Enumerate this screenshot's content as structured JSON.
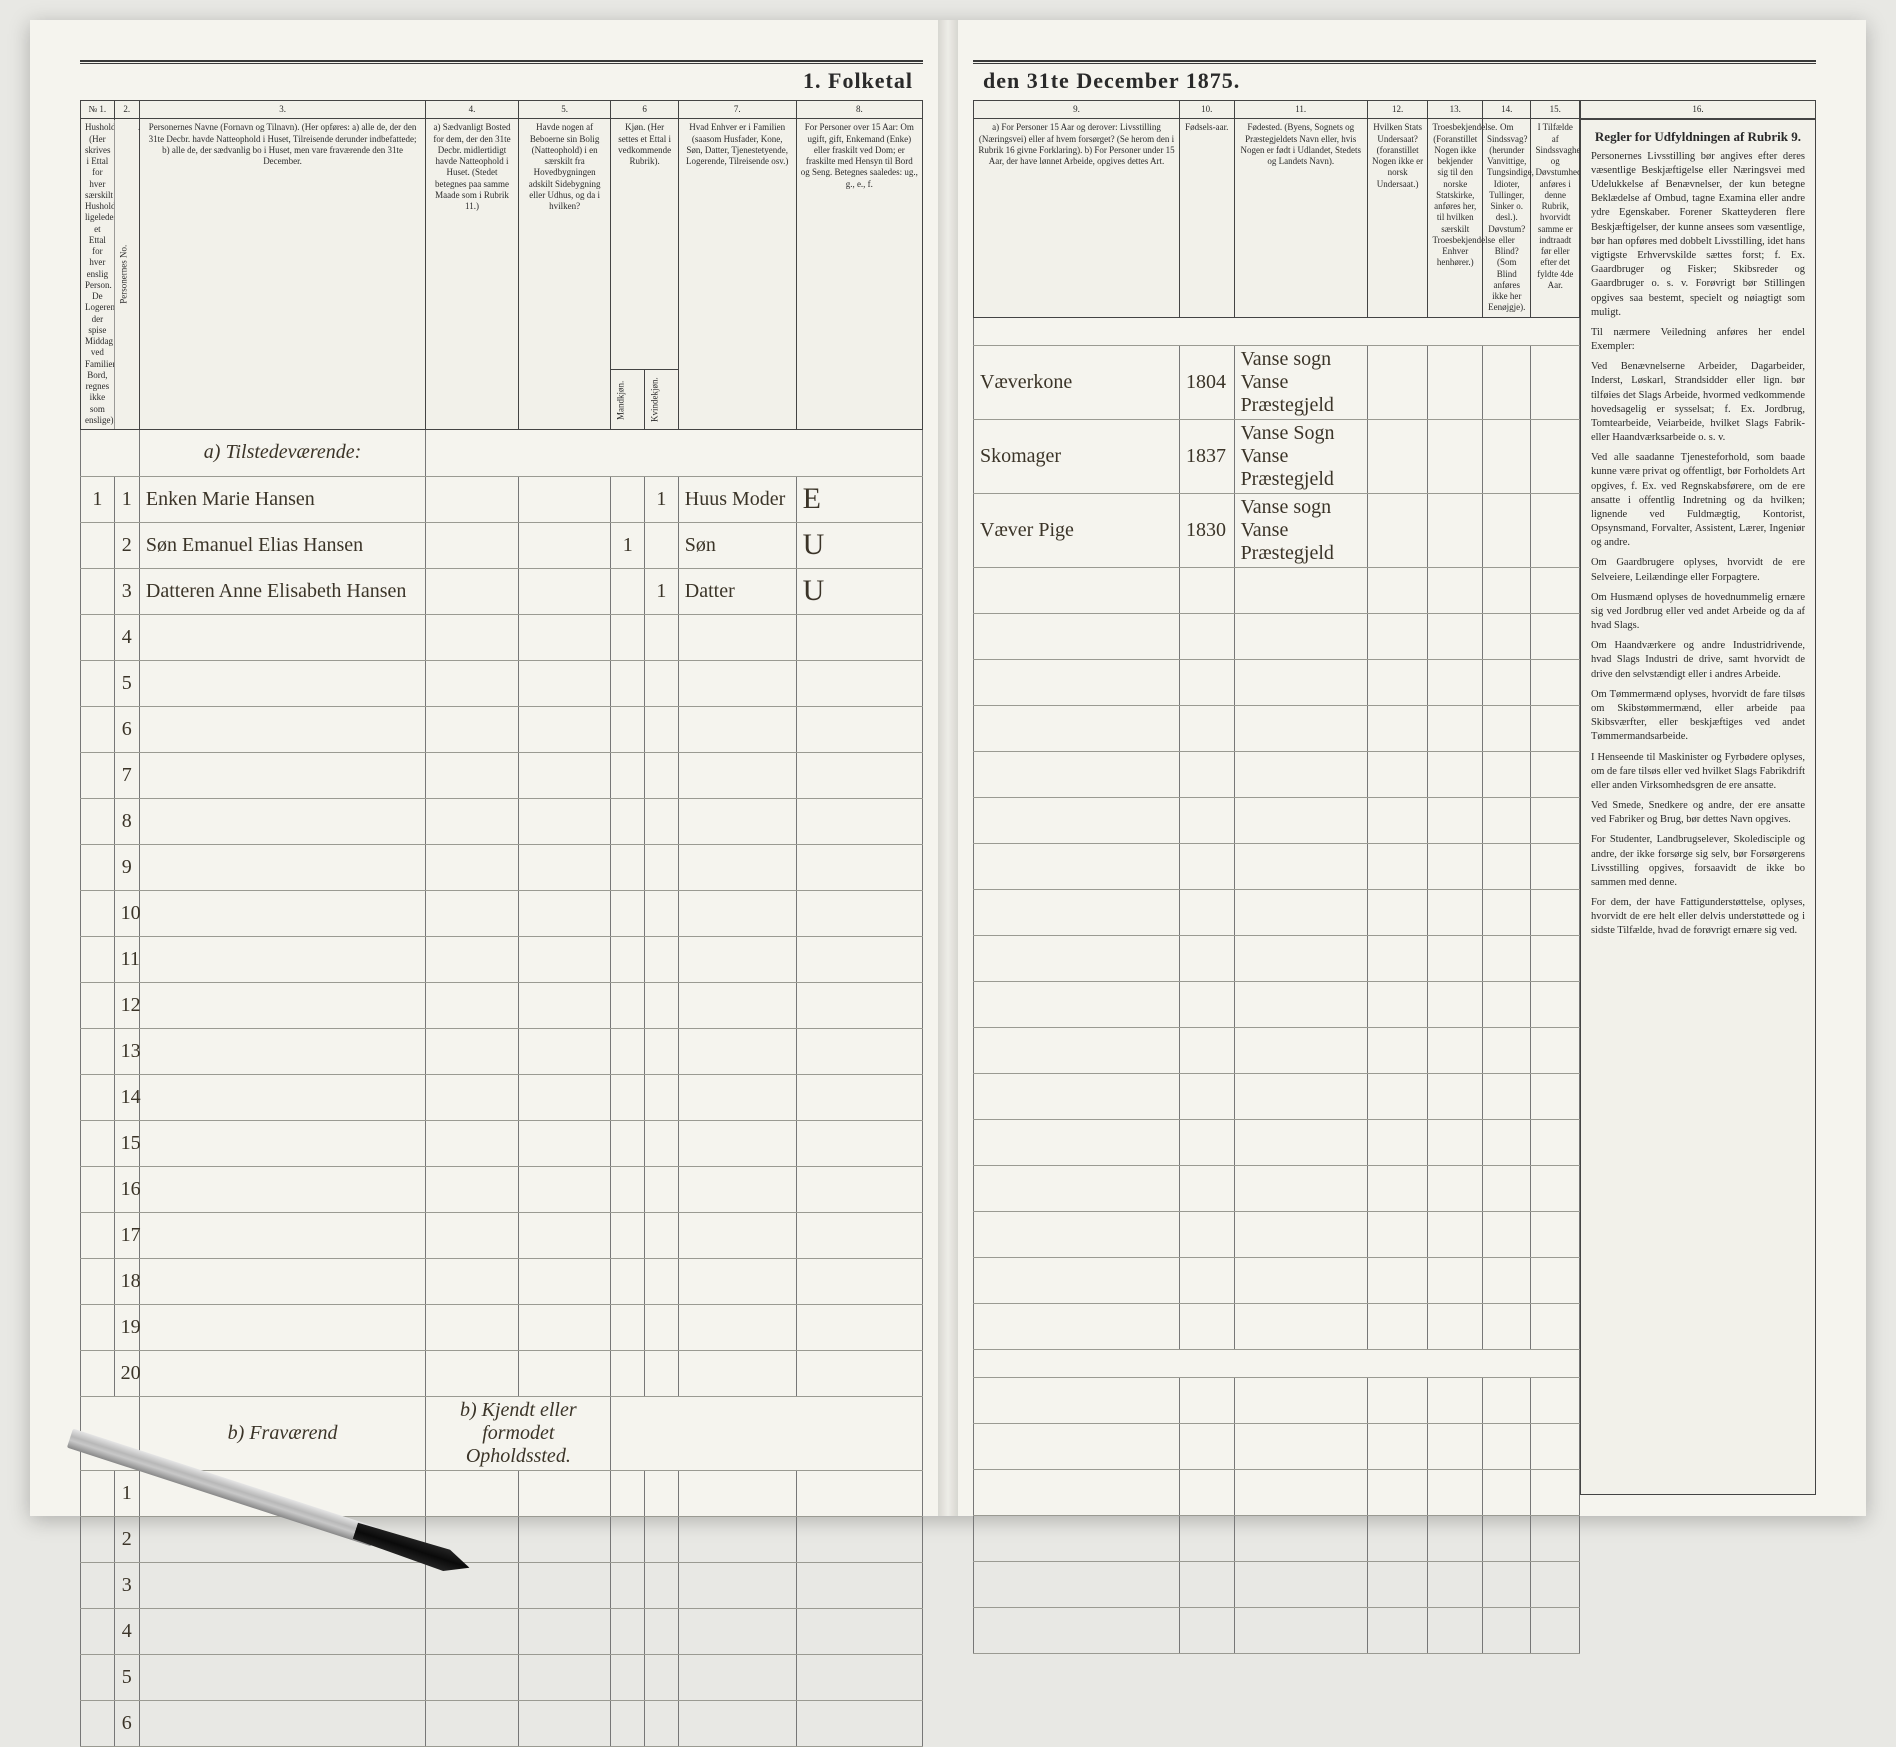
{
  "title_left": "1.  Folketal",
  "title_right": "den 31te December 1875.",
  "left_columns": {
    "c1": {
      "num": "№ 1.",
      "head": "Husholdninger. (Her skrives i Ettal for hver særskilt Husholdning; ligeledes et Ettal for hver enslig Person. De Logerende, der spise Middag ved Familiens Bord, regnes ikke som enslige)."
    },
    "c2": {
      "num": "2.",
      "head": "Personernes No."
    },
    "c3": {
      "num": "3.",
      "head": "Personernes Navne (Fornavn og Tilnavn). (Her opføres: a) alle de, der den 31te Decbr. havde Natteophold i Huset, Tilreisende derunder indbefattede; b) alle de, der sædvanlig bo i Huset, men vare fraværende den 31te December."
    },
    "c4": {
      "num": "4.",
      "head": "a) Sædvanligt Bosted for dem, der den 31te Decbr. midlertidigt havde Natteophold i Huset. (Stedet betegnes paa samme Maade som i Rubrik 11.)"
    },
    "c5": {
      "num": "5.",
      "head": "Havde nogen af Beboerne sin Bolig (Natteophold) i en særskilt fra Hovedbygningen adskilt Sidebygning eller Udhus, og da i hvilken?"
    },
    "c6": {
      "num": "6",
      "head": "Kjøn. (Her settes et Ettal i vedkommende Rubrik).",
      "sub_m": "Mandkjøn.",
      "sub_k": "Kvindekjøn."
    },
    "c7": {
      "num": "7.",
      "head": "Hvad Enhver er i Familien (saasom Husfader, Kone, Søn, Datter, Tjenestetyende, Logerende, Tilreisende osv.)"
    },
    "c8": {
      "num": "8.",
      "head": "For Personer over 15 Aar: Om ugift, gift, Enkemand (Enke) eller fraskilt ved Dom; er fraskilte med Hensyn til Bord og Seng. Betegnes saaledes: ug., g., e., f."
    }
  },
  "right_columns": {
    "c9": {
      "num": "9.",
      "head": "a) For Personer 15 Aar og derover: Livsstilling (Næringsvei) eller af hvem forsørget? (Se herom den i Rubrik 16 givne Forklaring). b) For Personer under 15 Aar, der have lønnet Arbeide, opgives dettes Art."
    },
    "c10": {
      "num": "10.",
      "head": "Fødsels-aar."
    },
    "c11": {
      "num": "11.",
      "head": "Fødested. (Byens, Sognets og Præstegjeldets Navn eller, hvis Nogen er født i Udlandet, Stedets og Landets Navn)."
    },
    "c12": {
      "num": "12.",
      "head": "Hvilken Stats Undersaat? (foranstillet Nogen ikke er norsk Undersaat.)"
    },
    "c13": {
      "num": "13.",
      "head": "Troesbekjendelse. (Foranstillet Nogen ikke bekjender sig til den norske Statskirke, anføres her, til hvilken særskilt Troesbekjendelse Enhver henhører.)"
    },
    "c14": {
      "num": "14.",
      "head": "Om Sindssvag? (herunder Vanvittige, Tungsindige, Idioter, Tullinger, Sinker o. desl.). Døvstum? eller Blind? (Som Blind anføres ikke her Eenøjgje)."
    },
    "c15": {
      "num": "15.",
      "head": "I Tilfælde af Sindssvaghed og Døvstumhed anføres i denne Rubrik, hvorvidt samme er indtraadt før eller efter det fyldte 4de Aar."
    },
    "c16": {
      "num": "16.",
      "head": "Regler for Udfyldningen af Rubrik 9."
    }
  },
  "subsections": {
    "a_tilstede": "a) Tilstedeværende:",
    "b_fravaer": "b)  Fraværend",
    "b_col4": "b) Kjendt eller formodet Opholdssted."
  },
  "rows": [
    {
      "h": "1",
      "n": "1",
      "name": "Enken Marie Hansen",
      "km": "",
      "kk": "1",
      "rel": "Huus Moder",
      "civ": "E",
      "occ": "Væverkone",
      "year": "1804",
      "birthplace": "Vanse sogn  Vanse Præstegjeld"
    },
    {
      "h": "",
      "n": "2",
      "name": "Søn Emanuel Elias Hansen",
      "km": "1",
      "kk": "",
      "rel": "Søn",
      "civ": "U",
      "occ": "Skomager",
      "year": "1837",
      "birthplace": "Vanse Sogn  Vanse Præstegjeld"
    },
    {
      "h": "",
      "n": "3",
      "name": "Datteren Anne Elisabeth Hansen",
      "km": "",
      "kk": "1",
      "rel": "Datter",
      "civ": "U",
      "occ": "Væver Pige",
      "year": "1830",
      "birthplace": "Vanse sogn  Vanse Præstegjeld"
    }
  ],
  "empty_row_numbers": [
    "4",
    "5",
    "6",
    "7",
    "8",
    "9",
    "10",
    "11",
    "12",
    "13",
    "14",
    "15",
    "16",
    "17",
    "18",
    "19",
    "20"
  ],
  "absent_row_numbers": [
    "1",
    "2",
    "3",
    "4",
    "5",
    "6"
  ],
  "instructions": {
    "heading": "Regler for Udfyldningen af Rubrik 9.",
    "paras": [
      "Personernes Livsstilling bør angives efter deres væsentlige Beskjæftigelse eller Næringsvei med Udelukkelse af Benævnelser, der kun betegne Beklædelse af Ombud, tagne Examina eller andre ydre Egenskaber. Forener Skatteyderen flere Beskjæftigelser, der kunne ansees som væsentlige, bør han opføres med dobbelt Livsstilling, idet hans vigtigste Erhvervskilde sættes forst; f. Ex. Gaardbruger og Fisker; Skibsreder og Gaardbruger o. s. v. Forøvrigt bør Stillingen opgives saa bestemt, specielt og nøiagtigt som muligt.",
      "Til nærmere Veiledning anføres her endel Exempler:",
      "Ved Benævnelserne Arbeider, Dagarbeider, Inderst, Løskarl, Strandsidder eller lign. bør tilføies det Slags Arbeide, hvormed vedkommende hovedsagelig er sysselsat; f. Ex. Jordbrug, Tomtearbeide, Veiarbeide, hvilket Slags Fabrik- eller Haandværksarbeide o. s. v.",
      "Ved alle saadanne Tjenesteforhold, som baade kunne være privat og offentligt, bør Forholdets Art opgives, f. Ex. ved Regnskabsførere, om de ere ansatte i offentlig Indretning og da hvilken; lignende ved Fuldmægtig, Kontorist, Opsynsmand, Forvalter, Assistent, Lærer, Ingeniør og andre.",
      "Om Gaardbrugere oplyses, hvorvidt de ere Selveiere, Leilændinge eller Forpagtere.",
      "Om Husmænd oplyses de hovednummelig ernære sig ved Jordbrug eller ved andet Arbeide og da af hvad Slags.",
      "Om Haandværkere og andre Industridrivende, hvad Slags Industri de drive, samt hvorvidt de drive den selvstændigt eller i andres Arbeide.",
      "Om Tømmermænd oplyses, hvorvidt de fare tilsøs om Skibstømmermænd, eller arbeide paa Skibsværfter, eller beskjæftiges ved andet Tømmermandsarbeide.",
      "I Henseende til Maskinister og Fyrbødere oplyses, om de fare tilsøs eller ved hvilket Slags Fabrikdrift eller anden Virksomhedsgren de ere ansatte.",
      "Ved Smede, Snedkere og andre, der ere ansatte ved Fabriker og Brug, bør dettes Navn opgives.",
      "For Studenter, Landbrugselever, Skoledisciple og andre, der ikke forsørge sig selv, bør Forsørgerens Livsstilling opgives, forsaavidt de ikke bo sammen med denne.",
      "For dem, der have Fattigunderstøttelse, oplyses, hvorvidt de ere helt eller delvis understøttede og i sidste Tilfælde, hvad de forøvrigt ernære sig ved."
    ]
  },
  "colors": {
    "paper": "#f5f4ee",
    "ink": "#2a2a2a",
    "rule": "#3a3a3a",
    "rowline": "#9a9a92",
    "cursive": "#3a3224"
  }
}
